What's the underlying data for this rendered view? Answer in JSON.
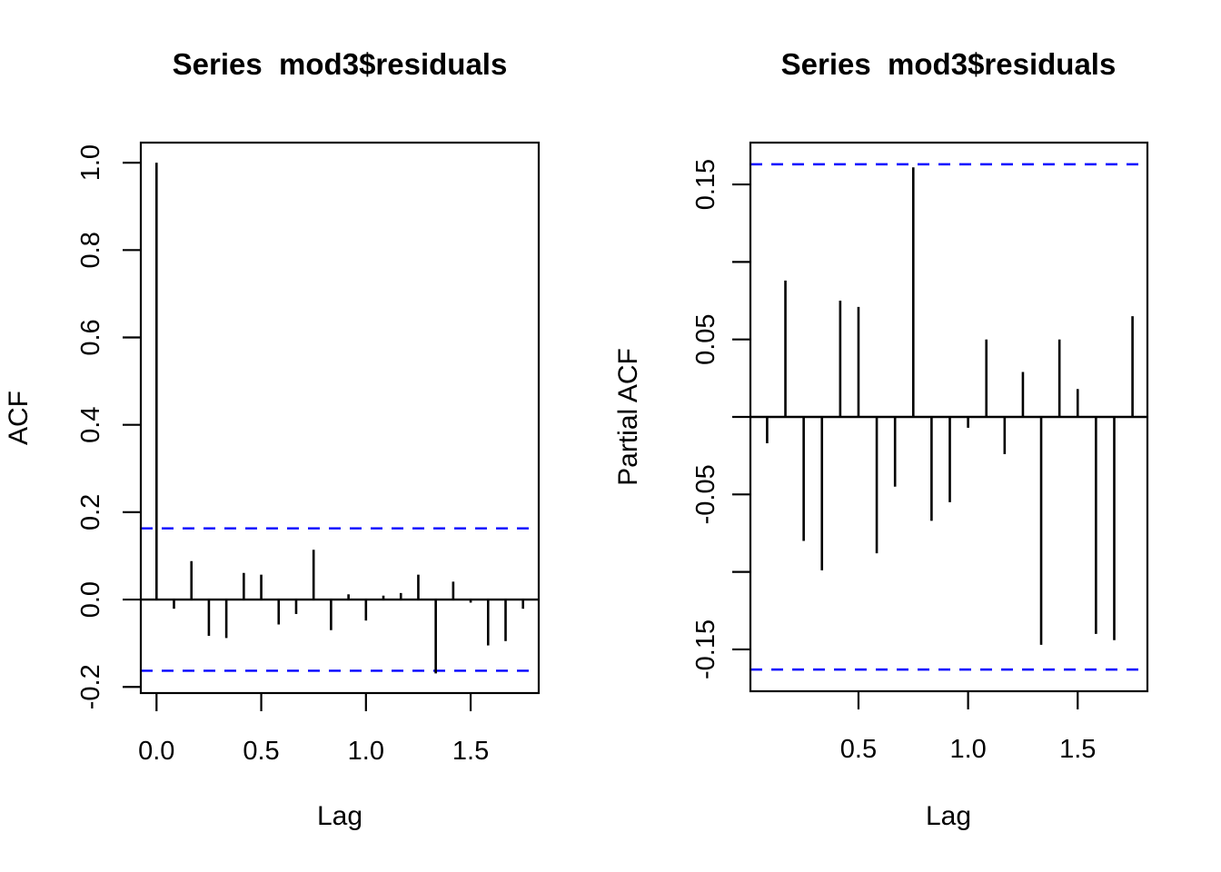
{
  "figure": {
    "background": "#ffffff",
    "bar_color": "#000000",
    "axis_color": "#000000",
    "conf_line_color": "#0000ff"
  },
  "chart_data": [
    {
      "type": "bar",
      "variant": "acf-stem-plot",
      "title": "Series  mod3$residuals",
      "xlabel": "Lag",
      "ylabel": "ACF",
      "grid": false,
      "legend": null,
      "conf_level": 0.163,
      "x": [
        0,
        0.0833,
        0.1667,
        0.25,
        0.3333,
        0.4167,
        0.5,
        0.5833,
        0.6667,
        0.75,
        0.8333,
        0.9167,
        1.0,
        1.0833,
        1.1667,
        1.25,
        1.3333,
        1.4167,
        1.5,
        1.5833,
        1.6667,
        1.75
      ],
      "values": [
        1.0,
        -0.021,
        0.088,
        -0.083,
        -0.088,
        0.061,
        0.057,
        -0.057,
        -0.033,
        0.114,
        -0.07,
        0.012,
        -0.048,
        0.009,
        0.015,
        0.057,
        -0.169,
        0.041,
        -0.007,
        -0.105,
        -0.095,
        -0.021
      ],
      "xlim": [
        -0.075,
        1.825
      ],
      "ylim": [
        -0.214,
        1.046
      ],
      "xticks": {
        "values": [
          0,
          0.5,
          1.0,
          1.5
        ],
        "labels": [
          "0.0",
          "0.5",
          "1.0",
          "1.5"
        ]
      },
      "yticks": {
        "values": [
          1.0,
          0.8,
          0.6,
          0.4,
          0.2,
          0.0,
          -0.2
        ],
        "labels": [
          "1.0",
          "0.8",
          "0.6",
          "0.4",
          "0.2",
          "0.0",
          "-0.2"
        ]
      }
    },
    {
      "type": "bar",
      "variant": "pacf-stem-plot",
      "title": "Series  mod3$residuals",
      "xlabel": "Lag",
      "ylabel": "Partial ACF",
      "grid": false,
      "legend": null,
      "conf_level": 0.163,
      "x": [
        0.0833,
        0.1667,
        0.25,
        0.3333,
        0.4167,
        0.5,
        0.5833,
        0.6667,
        0.75,
        0.8333,
        0.9167,
        1.0,
        1.0833,
        1.1667,
        1.25,
        1.3333,
        1.4167,
        1.5,
        1.5833,
        1.6667,
        1.75
      ],
      "values": [
        -0.017,
        0.088,
        -0.08,
        -0.099,
        0.075,
        0.071,
        -0.088,
        -0.045,
        0.161,
        -0.067,
        -0.055,
        -0.007,
        0.05,
        -0.024,
        0.029,
        -0.147,
        0.05,
        0.018,
        -0.14,
        -0.144,
        0.065
      ],
      "xlim": [
        0.007,
        1.818
      ],
      "ylim": [
        -0.177,
        0.177
      ],
      "xticks": {
        "values": [
          0.5,
          1.0,
          1.5
        ],
        "labels": [
          "0.5",
          "1.0",
          "1.5"
        ]
      },
      "yticks": {
        "values": [
          0.15,
          0.1,
          0.05,
          0.0,
          -0.05,
          -0.1,
          -0.15
        ],
        "labels": [
          "0.15",
          "",
          "0.05",
          "",
          "-0.05",
          "",
          "-0.15"
        ]
      }
    }
  ]
}
